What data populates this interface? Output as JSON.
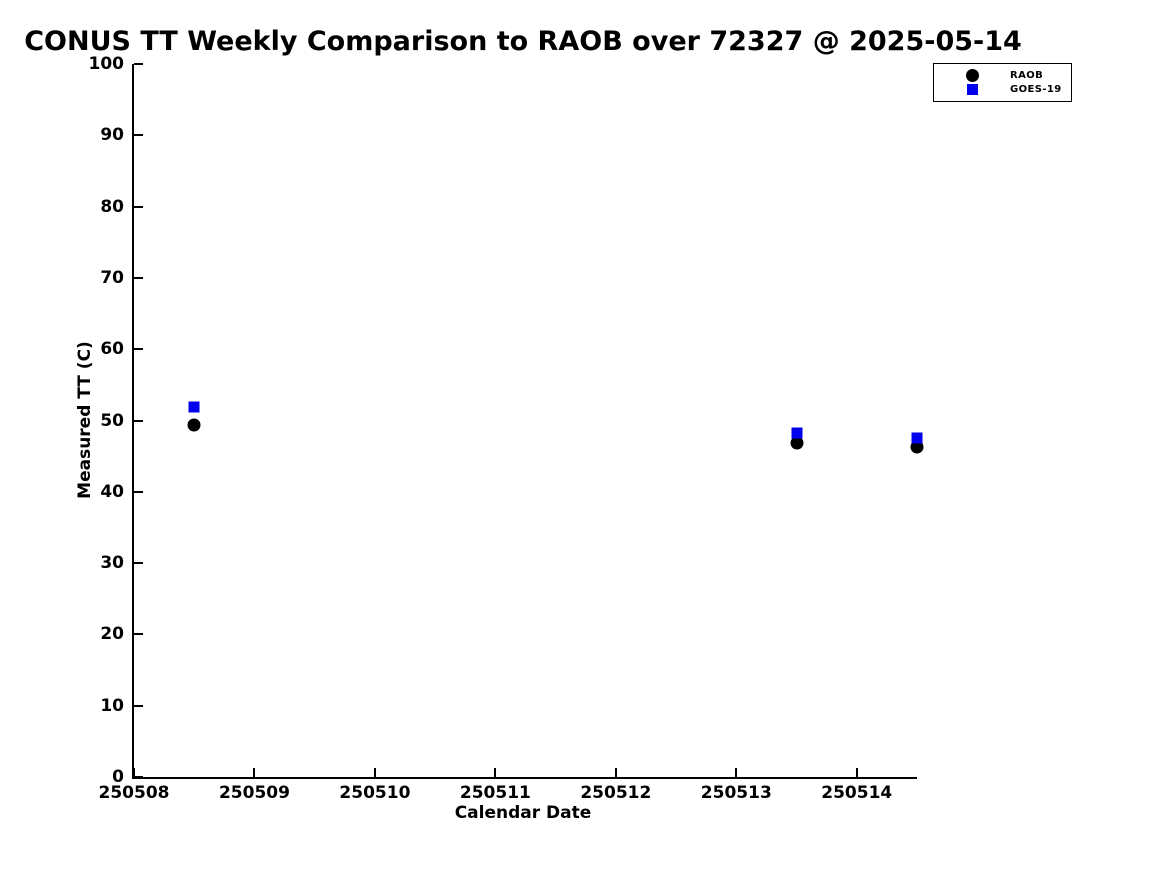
{
  "page": {
    "background": "#ffffff",
    "text_color": "#000000"
  },
  "chart_data": {
    "type": "scatter",
    "title": "CONUS TT Weekly Comparison to RAOB over 72327 @ 2025-05-14",
    "xlabel": "Calendar Date",
    "ylabel": "Measured TT (C)",
    "xlim": [
      250508,
      250514.5
    ],
    "ylim": [
      0,
      100
    ],
    "x_ticks": [
      250508,
      250509,
      250510,
      250511,
      250512,
      250513,
      250514
    ],
    "y_ticks": [
      0,
      10,
      20,
      30,
      40,
      50,
      60,
      70,
      80,
      90,
      100
    ],
    "grid": false,
    "tick_direction": "in",
    "legend": {
      "position": "upper-right",
      "border_color": "#000000",
      "entries": [
        {
          "label": "RAOB",
          "marker": "circle",
          "color": "#000000"
        },
        {
          "label": "GOES-19",
          "marker": "square",
          "color": "#0000ee"
        }
      ]
    },
    "series": [
      {
        "name": "RAOB",
        "marker": "circle",
        "color": "#000000",
        "points": [
          {
            "x": 250508.5,
            "y": 49.3
          },
          {
            "x": 250513.5,
            "y": 46.9
          },
          {
            "x": 250514.5,
            "y": 46.3
          }
        ]
      },
      {
        "name": "GOES-19",
        "marker": "square",
        "color": "#0000ee",
        "points": [
          {
            "x": 250508.5,
            "y": 51.9
          },
          {
            "x": 250513.5,
            "y": 48.2
          },
          {
            "x": 250514.5,
            "y": 47.5
          }
        ]
      }
    ]
  }
}
